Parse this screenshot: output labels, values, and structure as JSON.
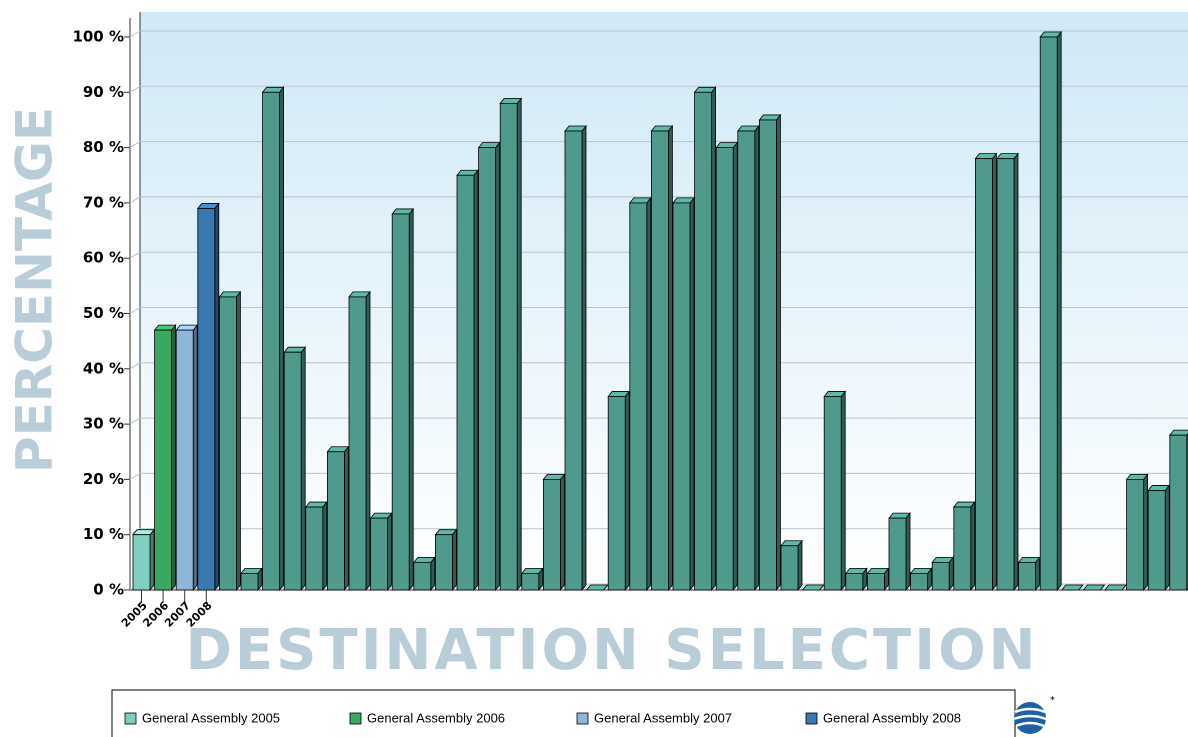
{
  "chart_data": {
    "type": "bar",
    "y_label": "PERCENTAGE",
    "x_label": "DESTINATION SELECTION",
    "categories": [
      "2005",
      "2006",
      "2007",
      "2008",
      null,
      null,
      null,
      null,
      null,
      null,
      null,
      null,
      null,
      null,
      null,
      null,
      null,
      null,
      null,
      null,
      null,
      null,
      null,
      null,
      null,
      null,
      null,
      null,
      null,
      null,
      null,
      null,
      null,
      null,
      null,
      null,
      null,
      null,
      null,
      null,
      null,
      null,
      null,
      null,
      null,
      null,
      null,
      null,
      null
    ],
    "values": [
      10,
      47,
      47,
      69,
      53,
      3,
      90,
      43,
      15,
      25,
      53,
      13,
      68,
      5,
      10,
      75,
      80,
      88,
      3,
      20,
      83,
      0,
      35,
      70,
      83,
      70,
      90,
      80,
      83,
      85,
      8,
      0,
      35,
      3,
      3,
      13,
      3,
      5,
      15,
      78,
      78,
      5,
      100,
      0,
      0,
      0,
      20,
      18,
      28
    ],
    "bar_color": "#4f9a8c",
    "legend": [
      {
        "name": "General Assembly 2005",
        "color": "#7fcfc0"
      },
      {
        "name": "General Assembly 2006",
        "color": "#3aa860"
      },
      {
        "name": "General Assembly 2007",
        "color": "#8fb6d8"
      },
      {
        "name": "General Assembly 2008",
        "color": "#3a78b0"
      }
    ],
    "ylim": [
      0,
      100
    ],
    "yticks": [
      {
        "value": 0,
        "label": "0 %"
      },
      {
        "value": 10,
        "label": "10 %"
      },
      {
        "value": 20,
        "label": "20 %"
      },
      {
        "value": 30,
        "label": "30 %"
      },
      {
        "value": 40,
        "label": "40 %"
      },
      {
        "value": 50,
        "label": "50 %"
      },
      {
        "value": 60,
        "label": "60 %"
      },
      {
        "value": 70,
        "label": "70 %"
      },
      {
        "value": 80,
        "label": "80 %"
      },
      {
        "value": 90,
        "label": "90 %"
      },
      {
        "value": 100,
        "label": "100 %"
      }
    ],
    "grid": true
  }
}
